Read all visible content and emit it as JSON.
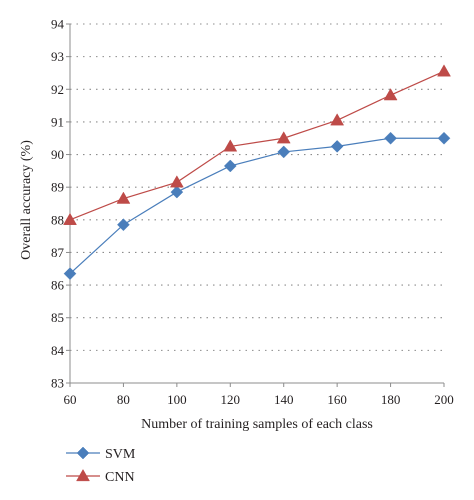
{
  "chart_data": {
    "type": "line",
    "x": [
      60,
      80,
      100,
      120,
      140,
      160,
      180,
      200
    ],
    "series": [
      {
        "name": "SVM",
        "values": [
          86.35,
          87.85,
          88.85,
          89.65,
          90.08,
          90.25,
          90.5,
          90.5
        ],
        "color": "#4a7ebb",
        "marker": "diamond"
      },
      {
        "name": "CNN",
        "values": [
          88.0,
          88.65,
          89.15,
          90.25,
          90.5,
          91.05,
          91.82,
          92.55
        ],
        "color": "#be4b48",
        "marker": "triangle"
      }
    ],
    "xlabel": "Number of training samples of each class",
    "ylabel": "Overall accuracy (%)",
    "xlim": [
      60,
      200
    ],
    "ylim": [
      83,
      94
    ],
    "x_ticks": [
      "60",
      "80",
      "100",
      "120",
      "140",
      "160",
      "180",
      "200"
    ],
    "y_ticks": [
      "83",
      "84",
      "85",
      "86",
      "87",
      "88",
      "89",
      "90",
      "91",
      "92",
      "93",
      "94"
    ],
    "grid": "horizontal-dotted",
    "legend": "bottom-left"
  }
}
